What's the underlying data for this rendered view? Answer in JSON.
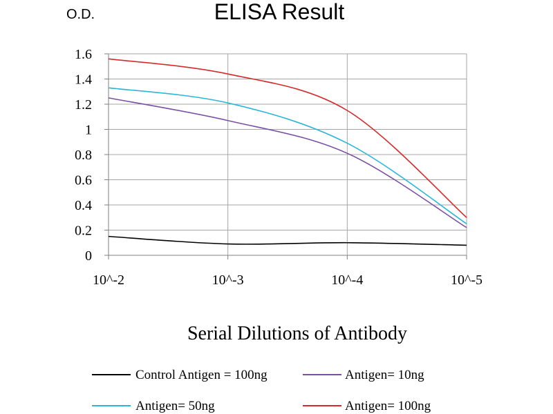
{
  "chart_data": {
    "type": "line",
    "title": "ELISA Result",
    "ylabel": "O.D.",
    "xlabel": "Serial Dilutions of Antibody",
    "x": [
      "10^-2",
      "10^-3",
      "10^-4",
      "10^-5"
    ],
    "ylim": [
      0,
      1.6
    ],
    "yticks": [
      "0",
      "0.2",
      "0.4",
      "0.6",
      "0.8",
      "1",
      "1.2",
      "1.4",
      "1.6"
    ],
    "grid": true,
    "legend_position": "bottom",
    "series": [
      {
        "name": "Control Antigen = 100ng",
        "color": "#000000",
        "values": [
          0.15,
          0.09,
          0.1,
          0.08
        ]
      },
      {
        "name": "Antigen= 10ng",
        "color": "#7a4ea3",
        "values": [
          1.25,
          1.07,
          0.81,
          0.22
        ]
      },
      {
        "name": "Antigen= 50ng",
        "color": "#2ab7d6",
        "values": [
          1.33,
          1.21,
          0.89,
          0.25
        ]
      },
      {
        "name": "Antigen= 100ng",
        "color": "#d42a2a",
        "values": [
          1.56,
          1.44,
          1.15,
          0.3
        ]
      }
    ]
  }
}
